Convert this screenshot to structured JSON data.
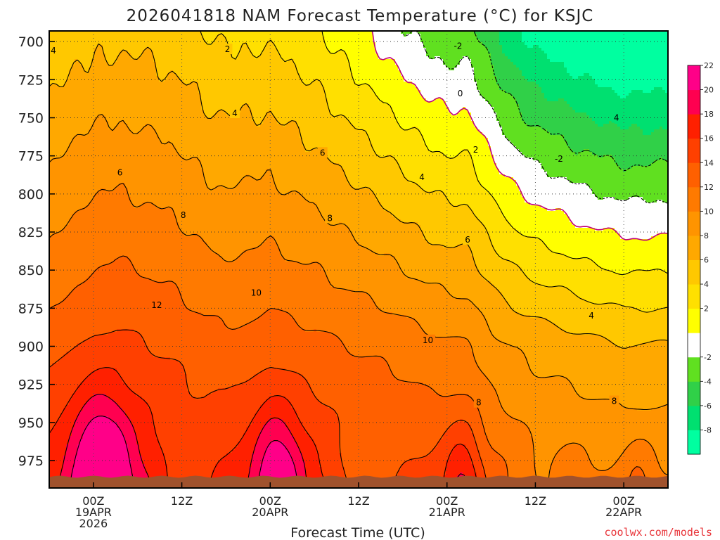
{
  "colors": {
    "bands": [
      "#00ffa0",
      "#00e070",
      "#30d048",
      "#60e020",
      "#ffffff",
      "#ffff00",
      "#ffe000",
      "#ffc800",
      "#ffa800",
      "#ff9400",
      "#ff7a00",
      "#ff6000",
      "#ff4000",
      "#ff2000",
      "#ff0050",
      "#ff0088"
    ],
    "zero_line": "#c0007a",
    "ground": "#a0522d",
    "credit": "#e8353a"
  },
  "chart_data": {
    "type": "heatmap",
    "title": "2026041818 NAM Forecast Temperature (°C) for KSJC",
    "xlabel": "Forecast Time (UTC)",
    "ylabel": "Pressure (hPa)",
    "credit": "coolwx.com/models",
    "x_range_hours": [
      -6,
      78
    ],
    "y_range_hpa": [
      993,
      693
    ],
    "y_ticks": [
      700,
      725,
      750,
      775,
      800,
      825,
      850,
      875,
      900,
      925,
      950,
      975
    ],
    "y_tick_labels": [
      "700",
      "725",
      "750",
      "775",
      "800",
      "825",
      "850",
      "875",
      "900",
      "925",
      "950",
      "975"
    ],
    "x_ticks": [
      {
        "hour": 0,
        "lines": [
          "00Z",
          "19APR",
          "2026"
        ]
      },
      {
        "hour": 12,
        "lines": [
          "12Z"
        ]
      },
      {
        "hour": 24,
        "lines": [
          "00Z",
          "20APR"
        ]
      },
      {
        "hour": 36,
        "lines": [
          "12Z"
        ]
      },
      {
        "hour": 48,
        "lines": [
          "00Z",
          "21APR"
        ]
      },
      {
        "hour": 60,
        "lines": [
          "12Z"
        ]
      },
      {
        "hour": 72,
        "lines": [
          "00Z",
          "22APR"
        ]
      }
    ],
    "colorbar": {
      "levels": [
        -10,
        -8,
        -6,
        -4,
        -2,
        0,
        2,
        4,
        6,
        8,
        10,
        12,
        14,
        16,
        18,
        20,
        22
      ],
      "labels": [
        "-8",
        "-6",
        "-4",
        "-2",
        "2",
        "4",
        "6",
        "8",
        "10",
        "12",
        "14",
        "16",
        "18",
        "20",
        "22"
      ]
    },
    "contour_labels": [
      {
        "text": "4",
        "h": -6,
        "p": 706
      },
      {
        "text": "2",
        "h": 18.2,
        "p": 705
      },
      {
        "text": "-2",
        "h": 49.5,
        "p": 703
      },
      {
        "text": "0",
        "h": 49.8,
        "p": 734
      },
      {
        "text": "4",
        "h": 19.2,
        "p": 747
      },
      {
        "text": "4",
        "h": 71,
        "p": 750
      },
      {
        "text": "6",
        "h": 31.1,
        "p": 773
      },
      {
        "text": "2",
        "h": 51.9,
        "p": 771
      },
      {
        "text": "-2",
        "h": 63.2,
        "p": 777
      },
      {
        "text": "6",
        "h": 3.6,
        "p": 786
      },
      {
        "text": "4",
        "h": 44.6,
        "p": 789
      },
      {
        "text": "8",
        "h": 12.2,
        "p": 814
      },
      {
        "text": "8",
        "h": 32.1,
        "p": 816
      },
      {
        "text": "6",
        "h": 50.8,
        "p": 830
      },
      {
        "text": "10",
        "h": 22.1,
        "p": 865
      },
      {
        "text": "12",
        "h": 8.6,
        "p": 873
      },
      {
        "text": "4",
        "h": 67.6,
        "p": 880
      },
      {
        "text": "10",
        "h": 45.4,
        "p": 896
      },
      {
        "text": "8",
        "h": 52.3,
        "p": 937
      },
      {
        "text": "8",
        "h": 70.7,
        "p": 936
      }
    ],
    "field_model": {
      "lapse_c_per_100hpa": 4.4,
      "reference_pressure": 850,
      "surface_base_temp": [
        [
          -6,
          11.0
        ],
        [
          -3,
          11.5
        ],
        [
          0,
          12.0
        ],
        [
          3,
          12.2
        ],
        [
          6,
          12.0
        ],
        [
          9,
          11.6
        ],
        [
          12,
          11.2
        ],
        [
          15,
          10.6
        ],
        [
          18,
          10.4
        ],
        [
          21,
          10.6
        ],
        [
          24,
          10.9
        ],
        [
          27,
          10.6
        ],
        [
          30,
          10.4
        ],
        [
          33,
          10.0
        ],
        [
          36,
          9.7
        ],
        [
          39,
          9.4
        ],
        [
          42,
          9.0
        ],
        [
          45,
          8.5
        ],
        [
          48,
          8.2
        ],
        [
          51,
          7.9
        ],
        [
          54,
          6.5
        ],
        [
          57,
          5.7
        ],
        [
          60,
          5.2
        ],
        [
          63,
          4.9
        ],
        [
          66,
          4.5
        ],
        [
          69,
          4.2
        ],
        [
          72,
          3.9
        ],
        [
          75,
          3.9
        ],
        [
          78,
          4.0
        ]
      ],
      "upper_adjust_700": [
        [
          -6,
          0.0
        ],
        [
          6,
          0.2
        ],
        [
          12,
          0.4
        ],
        [
          18,
          0.0
        ],
        [
          24,
          -0.4
        ],
        [
          30,
          -1.2
        ],
        [
          36,
          -2.4
        ],
        [
          42,
          -3.8
        ],
        [
          48,
          -4.6
        ],
        [
          51,
          -4.2
        ],
        [
          54,
          -5.0
        ],
        [
          57,
          -6.2
        ],
        [
          60,
          -7.0
        ],
        [
          66,
          -7.8
        ],
        [
          72,
          -8.2
        ],
        [
          78,
          -8.2
        ]
      ],
      "warm_pockets": [
        {
          "h": 1,
          "p": 990,
          "amp": 8.0,
          "w_h": 3.8,
          "w_p": 52
        },
        {
          "h": 25,
          "p": 990,
          "amp": 6.2,
          "w_h": 3.3,
          "w_p": 48
        },
        {
          "h": 50,
          "p": 990,
          "amp": 4.4,
          "w_h": 2.6,
          "w_p": 40
        },
        {
          "h": 74,
          "p": 990,
          "amp": 2.6,
          "w_h": 2.4,
          "w_p": 32
        },
        {
          "h": 61,
          "p": 975,
          "amp": 1.5,
          "w_h": 5.0,
          "w_p": 28
        },
        {
          "h": 16,
          "p": 985,
          "amp": 1.0,
          "w_h": 3.0,
          "w_p": 30
        }
      ],
      "cool_pockets": [
        {
          "h": 13,
          "p": 992,
          "amp": 3.2,
          "w_h": 3.6,
          "w_p": 42
        },
        {
          "h": 37,
          "p": 992,
          "amp": 3.6,
          "w_h": 3.5,
          "w_p": 45
        },
        {
          "h": 61,
          "p": 992,
          "amp": 2.6,
          "w_h": 3.4,
          "w_p": 42
        }
      ]
    }
  }
}
